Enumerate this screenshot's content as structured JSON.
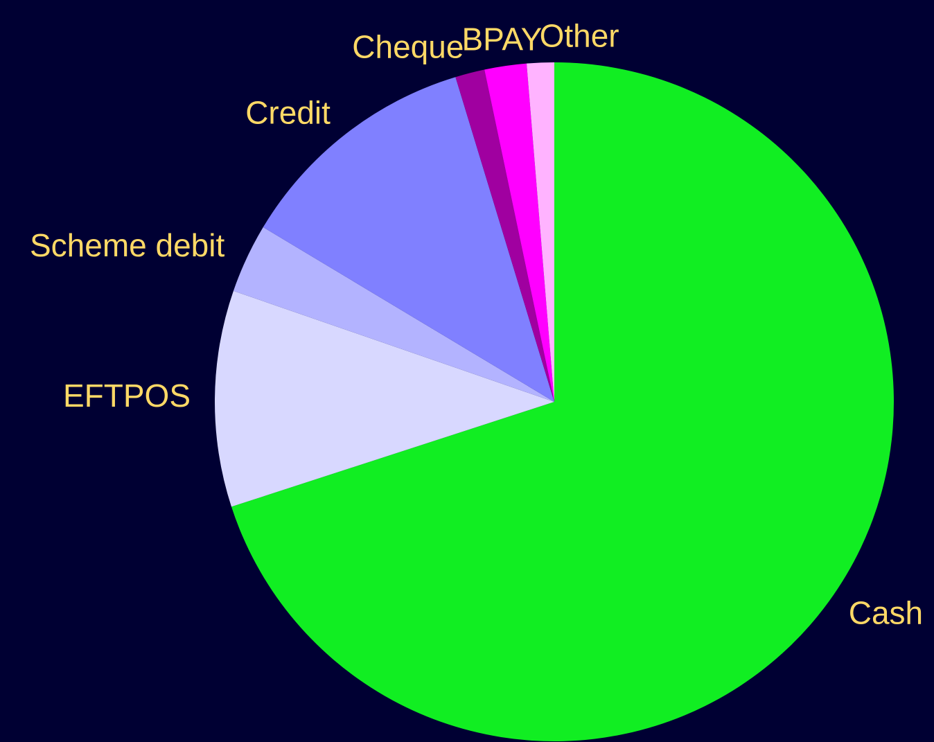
{
  "chart_data": {
    "type": "pie",
    "categories": [
      "Cash",
      "EFTPOS",
      "Scheme debit",
      "Credit",
      "Cheque",
      "BPAY",
      "Other"
    ],
    "values": [
      70,
      10.3,
      3.3,
      11.7,
      1.4,
      2.0,
      1.3
    ],
    "colors": [
      "#11ee22",
      "#d8d8ff",
      "#b3b3ff",
      "#8080ff",
      "#a000a0",
      "#ff00ff",
      "#ffb3ff"
    ],
    "start_angle": 0,
    "direction": "clockwise"
  }
}
